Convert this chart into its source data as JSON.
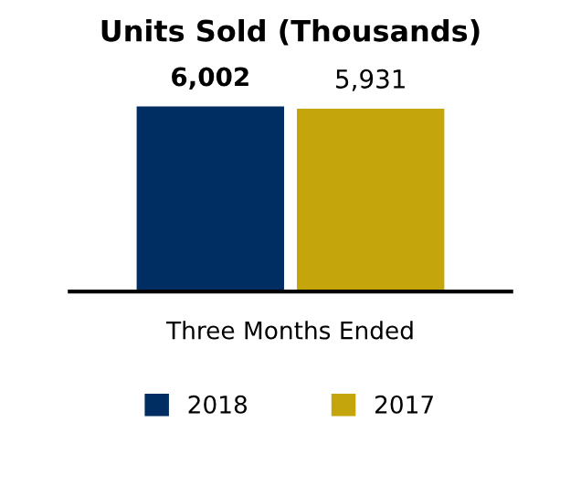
{
  "chart_data": {
    "type": "bar",
    "title": "Units Sold (Thousands)",
    "xlabel": "Three Months Ended",
    "categories": [
      null
    ],
    "series": [
      {
        "name": "2018",
        "color": "#002d62",
        "values": [
          6002
        ],
        "value_labels": [
          "6,002"
        ]
      },
      {
        "name": "2017",
        "color": "#c4a60c",
        "values": [
          5931
        ],
        "value_labels": [
          "5,931"
        ]
      }
    ],
    "legend": "bottom",
    "grid": false
  }
}
